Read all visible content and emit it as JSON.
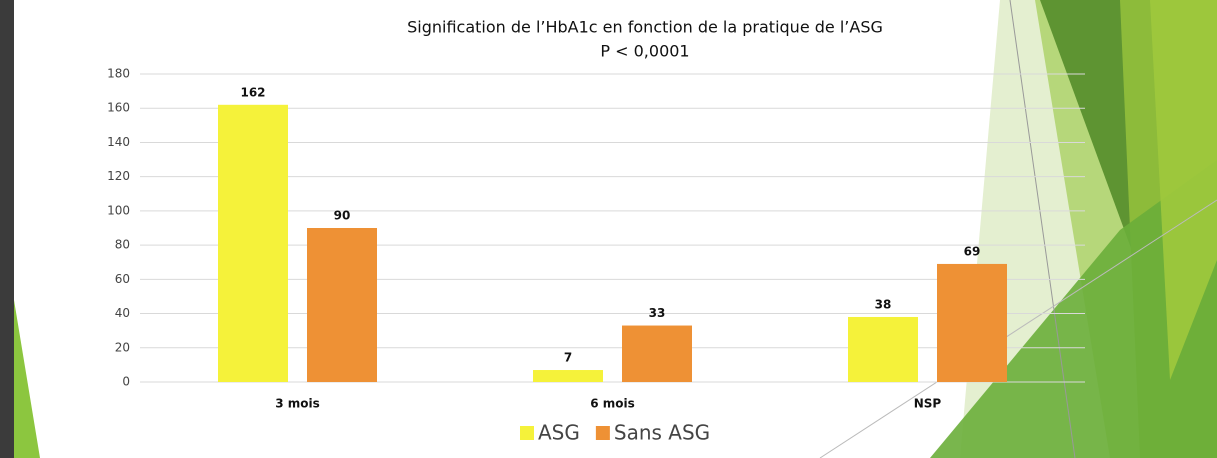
{
  "chart_data": {
    "type": "bar",
    "title": "Signification de l’HbA1c en fonction de la pratique de l’ASG",
    "subtitle": "P < 0,0001",
    "categories": [
      "3 mois",
      "6 mois",
      "NSP"
    ],
    "series": [
      {
        "name": "ASG",
        "color": "#f5f23a",
        "values": [
          162,
          7,
          38
        ]
      },
      {
        "name": "Sans ASG",
        "color": "#ee9135",
        "values": [
          90,
          33,
          69
        ]
      }
    ],
    "ylim": [
      0,
      180
    ],
    "yticks": [
      0,
      20,
      40,
      60,
      80,
      100,
      120,
      140,
      160,
      180
    ],
    "grid": true,
    "legend": "bottom"
  }
}
